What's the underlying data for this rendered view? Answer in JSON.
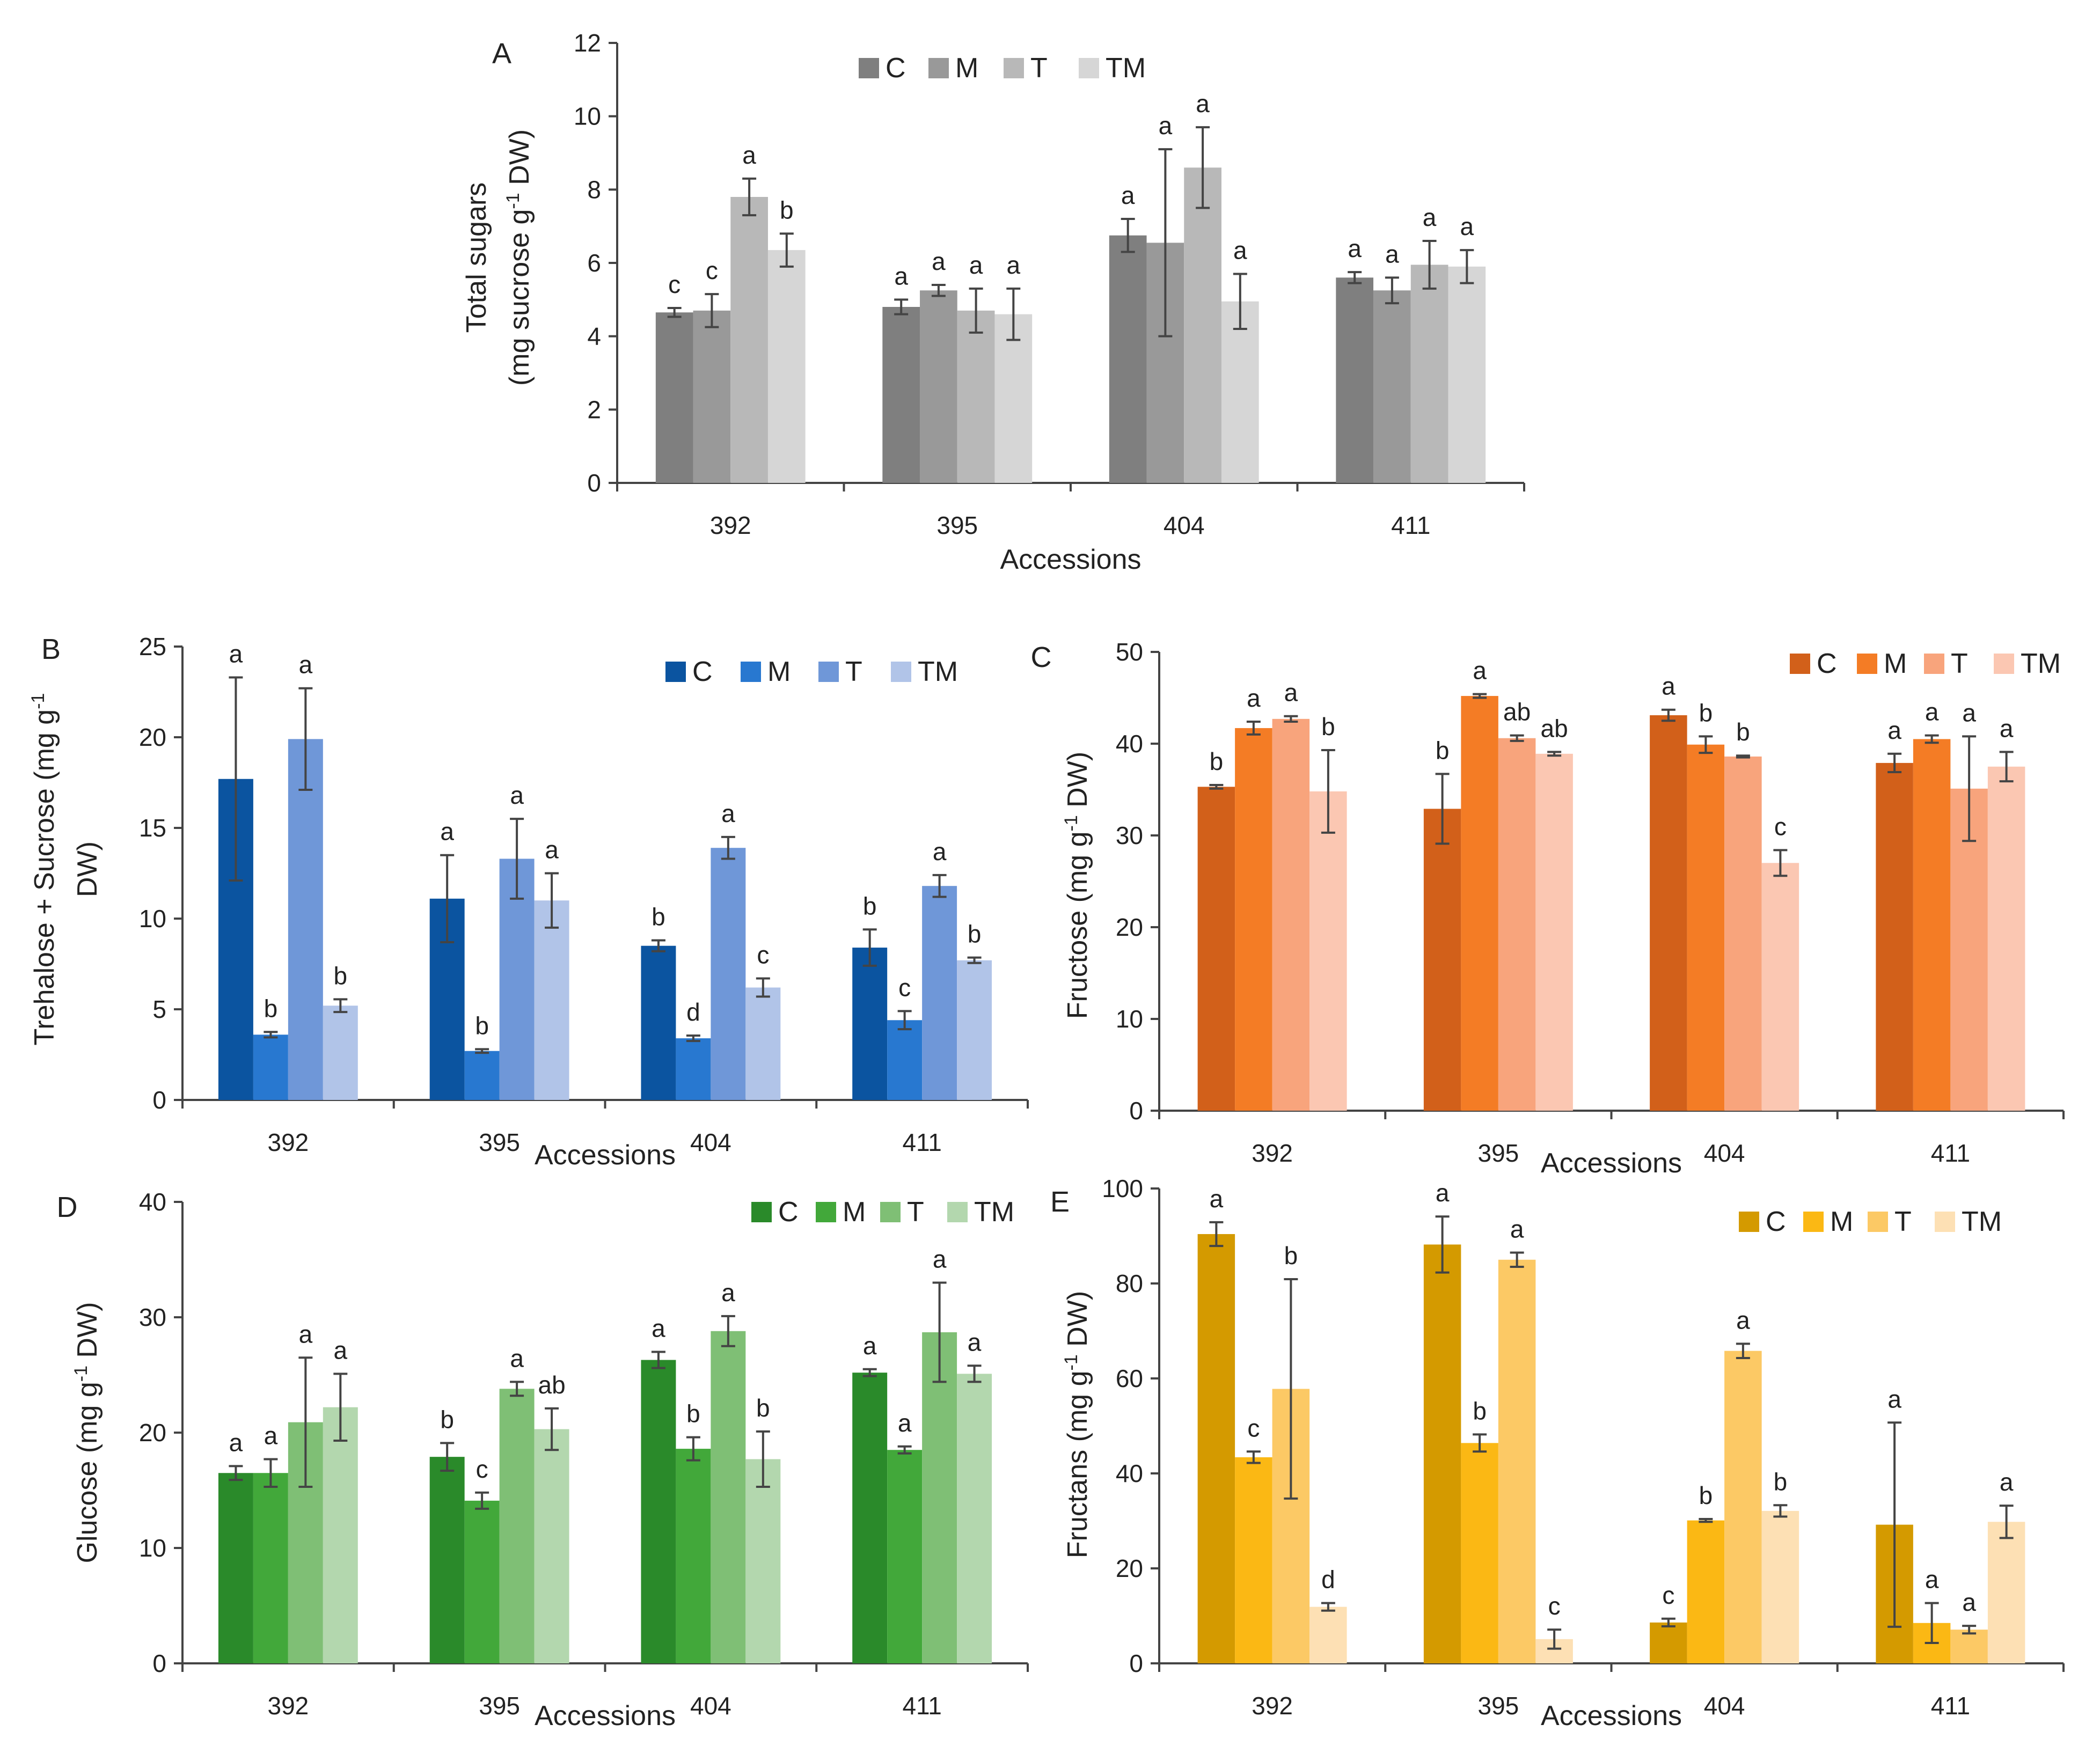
{
  "chart_data": [
    {
      "panel": "A",
      "type": "bar",
      "title": "",
      "xlabel": "Accessions",
      "ylabel": "Total sugars",
      "ylabel_line2_prefix": "(mg sucrose g",
      "ylabel_line2_sup": "-1",
      "ylabel_line2_suffix": " DW)",
      "ylim": [
        0,
        12
      ],
      "yticks": [
        0,
        2,
        4,
        6,
        8,
        10,
        12
      ],
      "categories": [
        "392",
        "395",
        "404",
        "411"
      ],
      "legend_position": "top",
      "series": [
        {
          "name": "C",
          "color": "#7f7f7f",
          "values": [
            4.65,
            4.8,
            6.75,
            5.6
          ],
          "errors": [
            0.12,
            0.2,
            0.45,
            0.15
          ],
          "letters": [
            "c",
            "a",
            "a",
            "a"
          ]
        },
        {
          "name": "M",
          "color": "#999999",
          "values": [
            4.7,
            5.25,
            6.55,
            5.25
          ],
          "errors": [
            0.45,
            0.15,
            2.55,
            0.35
          ],
          "letters": [
            "c",
            "a",
            "a",
            "a"
          ]
        },
        {
          "name": "T",
          "color": "#b8b8b8",
          "values": [
            7.8,
            4.7,
            8.6,
            5.95
          ],
          "errors": [
            0.5,
            0.6,
            1.1,
            0.65
          ],
          "letters": [
            "a",
            "a",
            "a",
            "a"
          ]
        },
        {
          "name": "TM",
          "color": "#d6d6d6",
          "values": [
            6.35,
            4.6,
            4.95,
            5.9
          ],
          "errors": [
            0.45,
            0.7,
            0.75,
            0.45
          ],
          "letters": [
            "b",
            "a",
            "a",
            "a"
          ]
        }
      ]
    },
    {
      "panel": "B",
      "type": "bar",
      "title": "",
      "xlabel": "Accessions",
      "ylabel": "Trehalose + Sucrose (mg g",
      "ylabel_sup": "-1",
      "ylabel_line2": "DW)",
      "ylim": [
        0,
        25
      ],
      "yticks": [
        0,
        5,
        10,
        15,
        20,
        25
      ],
      "categories": [
        "392",
        "395",
        "404",
        "411"
      ],
      "legend_position": "top-right",
      "series": [
        {
          "name": "C",
          "color": "#0b54a0",
          "values": [
            17.7,
            11.1,
            8.5,
            8.4
          ],
          "errors": [
            5.6,
            2.4,
            0.3,
            1.0
          ],
          "letters": [
            "a",
            "a",
            "b",
            "b"
          ]
        },
        {
          "name": "M",
          "color": "#2878d0",
          "values": [
            3.6,
            2.7,
            3.4,
            4.4
          ],
          "errors": [
            0.15,
            0.1,
            0.15,
            0.5
          ],
          "letters": [
            "b",
            "b",
            "d",
            "c"
          ]
        },
        {
          "name": "T",
          "color": "#6f97d8",
          "values": [
            19.9,
            13.3,
            13.9,
            11.8
          ],
          "errors": [
            2.8,
            2.2,
            0.6,
            0.6
          ],
          "letters": [
            "a",
            "a",
            "a",
            "a"
          ]
        },
        {
          "name": "TM",
          "color": "#b1c4e8",
          "values": [
            5.2,
            11.0,
            6.2,
            7.7
          ],
          "errors": [
            0.35,
            1.5,
            0.5,
            0.15
          ],
          "letters": [
            "b",
            "a",
            "c",
            "b"
          ]
        }
      ]
    },
    {
      "panel": "C",
      "type": "bar",
      "title": "",
      "xlabel": "Accessions",
      "ylabel": "Fructose (mg g",
      "ylabel_sup": "-1",
      "ylabel_suffix": " DW)",
      "ylim": [
        0,
        50
      ],
      "yticks": [
        0,
        10,
        20,
        30,
        40,
        50
      ],
      "categories": [
        "392",
        "395",
        "404",
        "411"
      ],
      "legend_position": "top-right",
      "series": [
        {
          "name": "C",
          "color": "#d2601a",
          "values": [
            35.3,
            32.9,
            43.1,
            37.9
          ],
          "errors": [
            0.2,
            3.8,
            0.6,
            1.0
          ],
          "letters": [
            "b",
            "b",
            "a",
            "a"
          ]
        },
        {
          "name": "M",
          "color": "#f47c25",
          "values": [
            41.7,
            45.2,
            39.9,
            40.5
          ],
          "errors": [
            0.7,
            0.2,
            0.9,
            0.4
          ],
          "letters": [
            "a",
            "a",
            "b",
            "a"
          ]
        },
        {
          "name": "T",
          "color": "#f8a47c",
          "values": [
            42.7,
            40.6,
            38.6,
            35.1
          ],
          "errors": [
            0.3,
            0.3,
            0.1,
            5.7
          ],
          "letters": [
            "a",
            "ab",
            "b",
            "a"
          ]
        },
        {
          "name": "TM",
          "color": "#fbc7b2",
          "values": [
            34.8,
            38.9,
            27.0,
            37.5
          ],
          "errors": [
            4.5,
            0.2,
            1.4,
            1.6
          ],
          "letters": [
            "b",
            "ab",
            "c",
            "a"
          ]
        }
      ]
    },
    {
      "panel": "D",
      "type": "bar",
      "title": "",
      "xlabel": "Accessions",
      "ylabel": "Glucose (mg g",
      "ylabel_sup": "-1",
      "ylabel_suffix": " DW)",
      "ylim": [
        0,
        40
      ],
      "yticks": [
        0,
        10,
        20,
        30,
        40
      ],
      "categories": [
        "392",
        "395",
        "404",
        "411"
      ],
      "legend_position": "top-right",
      "series": [
        {
          "name": "C",
          "color": "#2a8a2a",
          "values": [
            16.5,
            17.9,
            26.3,
            25.2
          ],
          "errors": [
            0.6,
            1.2,
            0.7,
            0.3
          ],
          "letters": [
            "a",
            "b",
            "a",
            "a"
          ]
        },
        {
          "name": "M",
          "color": "#42a83a",
          "values": [
            16.5,
            14.1,
            18.6,
            18.5
          ],
          "errors": [
            1.2,
            0.7,
            1.0,
            0.3
          ],
          "letters": [
            "a",
            "c",
            "b",
            "a"
          ]
        },
        {
          "name": "T",
          "color": "#7fbf75",
          "values": [
            20.9,
            23.8,
            28.8,
            28.7
          ],
          "errors": [
            5.6,
            0.6,
            1.3,
            4.3
          ],
          "letters": [
            "a",
            "a",
            "a",
            "a"
          ]
        },
        {
          "name": "TM",
          "color": "#b3d7ae",
          "values": [
            22.2,
            20.3,
            17.7,
            25.1
          ],
          "errors": [
            2.9,
            1.8,
            2.4,
            0.7
          ],
          "letters": [
            "a",
            "ab",
            "b",
            "a"
          ]
        }
      ]
    },
    {
      "panel": "E",
      "type": "bar",
      "title": "",
      "xlabel": "Accessions",
      "ylabel": "Fructans (mg g",
      "ylabel_sup": "-1",
      "ylabel_suffix": " DW)",
      "ylim": [
        0,
        100
      ],
      "yticks": [
        0,
        20,
        40,
        60,
        80,
        100
      ],
      "categories": [
        "392",
        "395",
        "404",
        "411"
      ],
      "legend_position": "top-right",
      "series": [
        {
          "name": "C",
          "color": "#d49a00",
          "values": [
            90.4,
            88.2,
            8.6,
            29.2
          ],
          "errors": [
            2.5,
            5.9,
            0.8,
            21.5
          ],
          "letters": [
            "a",
            "a",
            "c",
            "a"
          ]
        },
        {
          "name": "M",
          "color": "#fbb814",
          "values": [
            43.4,
            46.4,
            30.1,
            8.5
          ],
          "errors": [
            1.2,
            1.8,
            0.3,
            4.2
          ],
          "letters": [
            "c",
            "b",
            "b",
            "a"
          ]
        },
        {
          "name": "T",
          "color": "#fcc965",
          "values": [
            57.8,
            85.0,
            65.8,
            7.1
          ],
          "errors": [
            23.1,
            1.5,
            1.5,
            0.8
          ],
          "letters": [
            "b",
            "a",
            "a",
            "a"
          ]
        },
        {
          "name": "TM",
          "color": "#fde0b4",
          "values": [
            11.9,
            5.1,
            32.1,
            29.8
          ],
          "errors": [
            0.8,
            2.0,
            1.2,
            3.4
          ],
          "letters": [
            "d",
            "c",
            "b",
            "a"
          ]
        }
      ]
    }
  ]
}
